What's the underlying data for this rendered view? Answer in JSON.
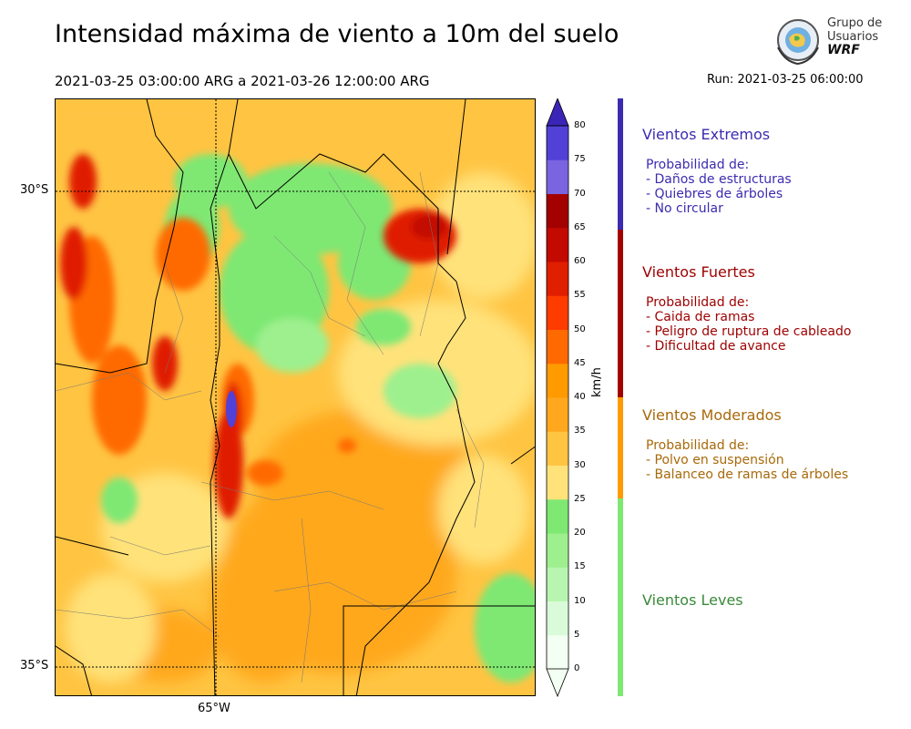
{
  "title": "Intensidad máxima de viento a 10m del suelo",
  "period": "2021-03-25 03:00:00 ARG  a  2021-03-26 12:00:00 ARG",
  "run": "Run: 2021-03-25 06:00:00",
  "logo": {
    "line1": "Grupo de",
    "line2": "Usuarios",
    "line3": "WRF"
  },
  "map": {
    "lat_labels": [
      "30°S",
      "35°S"
    ],
    "lon_labels": [
      "65°W"
    ]
  },
  "colorbar": {
    "unit": "km/h",
    "ticks": [
      "0",
      "5",
      "10",
      "15",
      "20",
      "25",
      "30",
      "35",
      "40",
      "45",
      "50",
      "55",
      "60",
      "65",
      "70",
      "75",
      "80"
    ],
    "colors": [
      "#f2fff2",
      "#d9fbd9",
      "#b8f5b0",
      "#9ef08e",
      "#7ee873",
      "#ffe27a",
      "#ffc442",
      "#ffa81e",
      "#ff9a00",
      "#ff6a00",
      "#ff3b00",
      "#e01e00",
      "#c20a00",
      "#a30000",
      "#7a64e0",
      "#5141d6",
      "#3b25b8"
    ]
  },
  "categories": [
    {
      "name": "Vientos Extremos",
      "color": "#3c2bb0",
      "desc": [
        "Probabilidad de:",
        "- Daños de estructuras",
        "- Quiebres de árboles",
        "- No circular"
      ]
    },
    {
      "name": "Vientos Fuertes",
      "color": "#9e0000",
      "desc": [
        "Probabilidad de:",
        "- Caida de ramas",
        "- Peligro de ruptura de cableado",
        "- Dificultad de avance"
      ]
    },
    {
      "name": "Vientos Moderados",
      "color": "#a8690a",
      "desc": [
        "Probabilidad de:",
        "- Polvo en suspensión",
        "- Balanceo de ramas de árboles"
      ]
    },
    {
      "name": "Vientos Leves",
      "color": "#3a8a3a",
      "desc": []
    }
  ]
}
